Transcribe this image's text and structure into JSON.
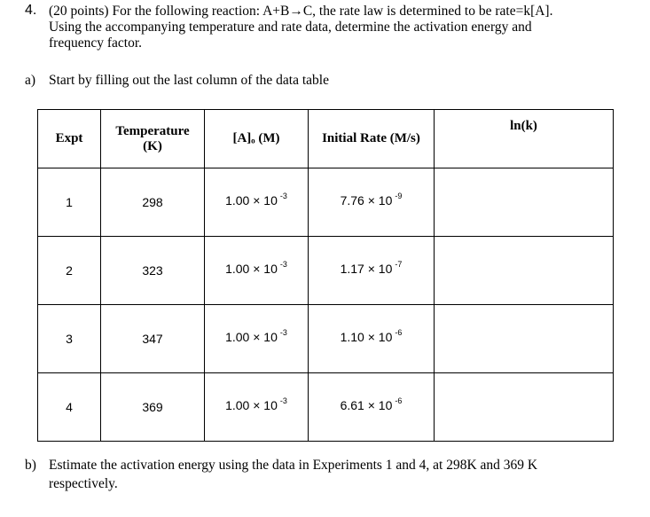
{
  "question": {
    "number": "4.",
    "lines": [
      "(20 points) For the following reaction: A+B→C, the rate law is determined to be rate=k[A].",
      "Using the accompanying temperature and rate data, determine the activation energy and",
      "frequency factor."
    ]
  },
  "part_a": {
    "label": "a)",
    "text": "Start by filling out the last column of the data table"
  },
  "table": {
    "headers": [
      [
        "Expt"
      ],
      [
        "Temperature",
        "(K)"
      ],
      [
        "[A]ₒ (M)"
      ],
      [
        "Initial Rate (M/s)"
      ],
      [
        "ln(k)"
      ]
    ],
    "rows": [
      {
        "expt": "1",
        "temperature": "298",
        "concentration": {
          "base": "1.00 × 10",
          "exp": "-3"
        },
        "rate": {
          "base": "7.76 × 10",
          "exp": "-9"
        }
      },
      {
        "expt": "2",
        "temperature": "323",
        "concentration": {
          "base": "1.00 × 10",
          "exp": "-3"
        },
        "rate": {
          "base": "1.17 × 10",
          "exp": "-7"
        }
      },
      {
        "expt": "3",
        "temperature": "347",
        "concentration": {
          "base": "1.00 × 10",
          "exp": "-3"
        },
        "rate": {
          "base": "1.10 × 10",
          "exp": "-6"
        }
      },
      {
        "expt": "4",
        "temperature": "369",
        "concentration": {
          "base": "1.00 × 10",
          "exp": "-3"
        },
        "rate": {
          "base": "6.61 × 10",
          "exp": "-6"
        }
      }
    ]
  },
  "part_b": {
    "label": "b)",
    "lines": [
      "Estimate the activation energy using the data in Experiments 1 and 4, at 298K and 369 K",
      "respectively."
    ]
  }
}
